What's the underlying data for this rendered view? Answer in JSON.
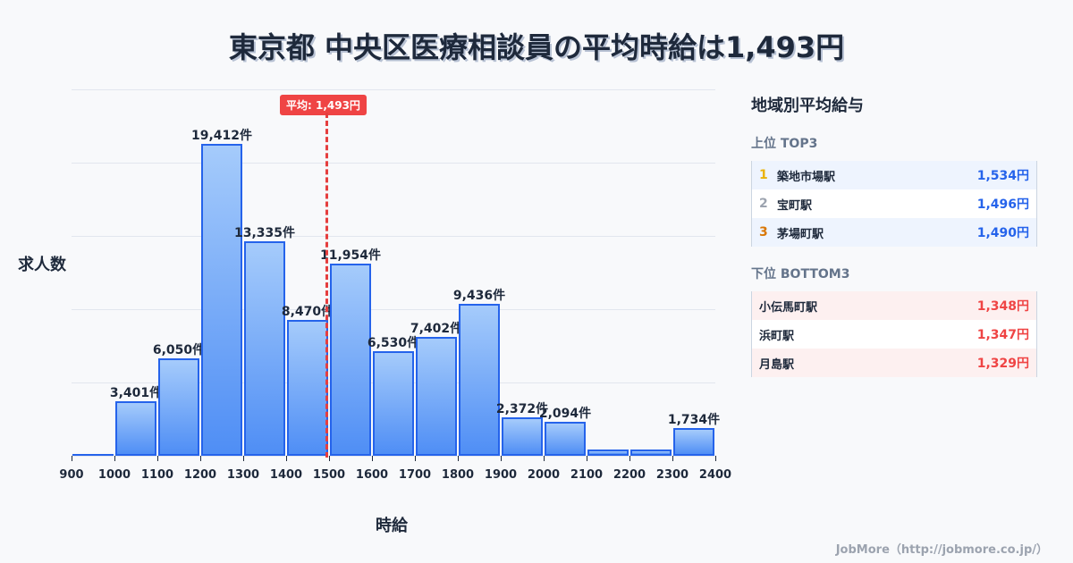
{
  "title": "東京都 中央区医療相談員の平均時給は1,493円",
  "chart_data": {
    "type": "bar",
    "title": "東京都 中央区医療相談員の平均時給は1,493円",
    "xlabel": "時給",
    "ylabel": "求人数",
    "categories": [
      "900-1000",
      "1000-1100",
      "1100-1200",
      "1200-1300",
      "1300-1400",
      "1400-1500",
      "1500-1600",
      "1600-1700",
      "1700-1800",
      "1800-1900",
      "1900-2000",
      "2000-2100",
      "2100-2200",
      "2200-2300",
      "2300-2400"
    ],
    "values": [
      100,
      3401,
      6050,
      19412,
      13335,
      8470,
      11954,
      6530,
      7402,
      9436,
      2372,
      2094,
      400,
      400,
      1734
    ],
    "labels": [
      "",
      "3,401件",
      "6,050件",
      "19,412件",
      "13,335件",
      "8,470件",
      "11,954件",
      "6,530件",
      "7,402件",
      "9,436件",
      "2,372件",
      "2,094件",
      "",
      "",
      "1,734件"
    ],
    "x_ticks": [
      "900",
      "1000",
      "1100",
      "1200",
      "1300",
      "1400",
      "1500",
      "1600",
      "1700",
      "1800",
      "1900",
      "2000",
      "2100",
      "2200",
      "2300",
      "2400"
    ],
    "xlim": [
      900,
      2400
    ],
    "ylim": [
      0,
      22800
    ],
    "grid": true,
    "annotation": {
      "label": "平均: 1,493円",
      "x": 1493,
      "color": "#ef4444"
    },
    "bar_color": "#4f8ef5",
    "bar_border": "#2563eb"
  },
  "panel": {
    "title": "地域別平均給与",
    "top_title": "上位 TOP3",
    "top": [
      {
        "rank": "1",
        "name": "築地市場駅",
        "value": "1,534円",
        "rank_color": "#eab308"
      },
      {
        "rank": "2",
        "name": "宝町駅",
        "value": "1,496円",
        "rank_color": "#9ca3af"
      },
      {
        "rank": "3",
        "name": "茅場町駅",
        "value": "1,490円",
        "rank_color": "#d97706"
      }
    ],
    "bottom_title": "下位 BOTTOM3",
    "bottom": [
      {
        "name": "小伝馬町駅",
        "value": "1,348円"
      },
      {
        "name": "浜町駅",
        "value": "1,347円"
      },
      {
        "name": "月島駅",
        "value": "1,329円"
      }
    ]
  },
  "footer": "JobMore（http://jobmore.co.jp/）"
}
